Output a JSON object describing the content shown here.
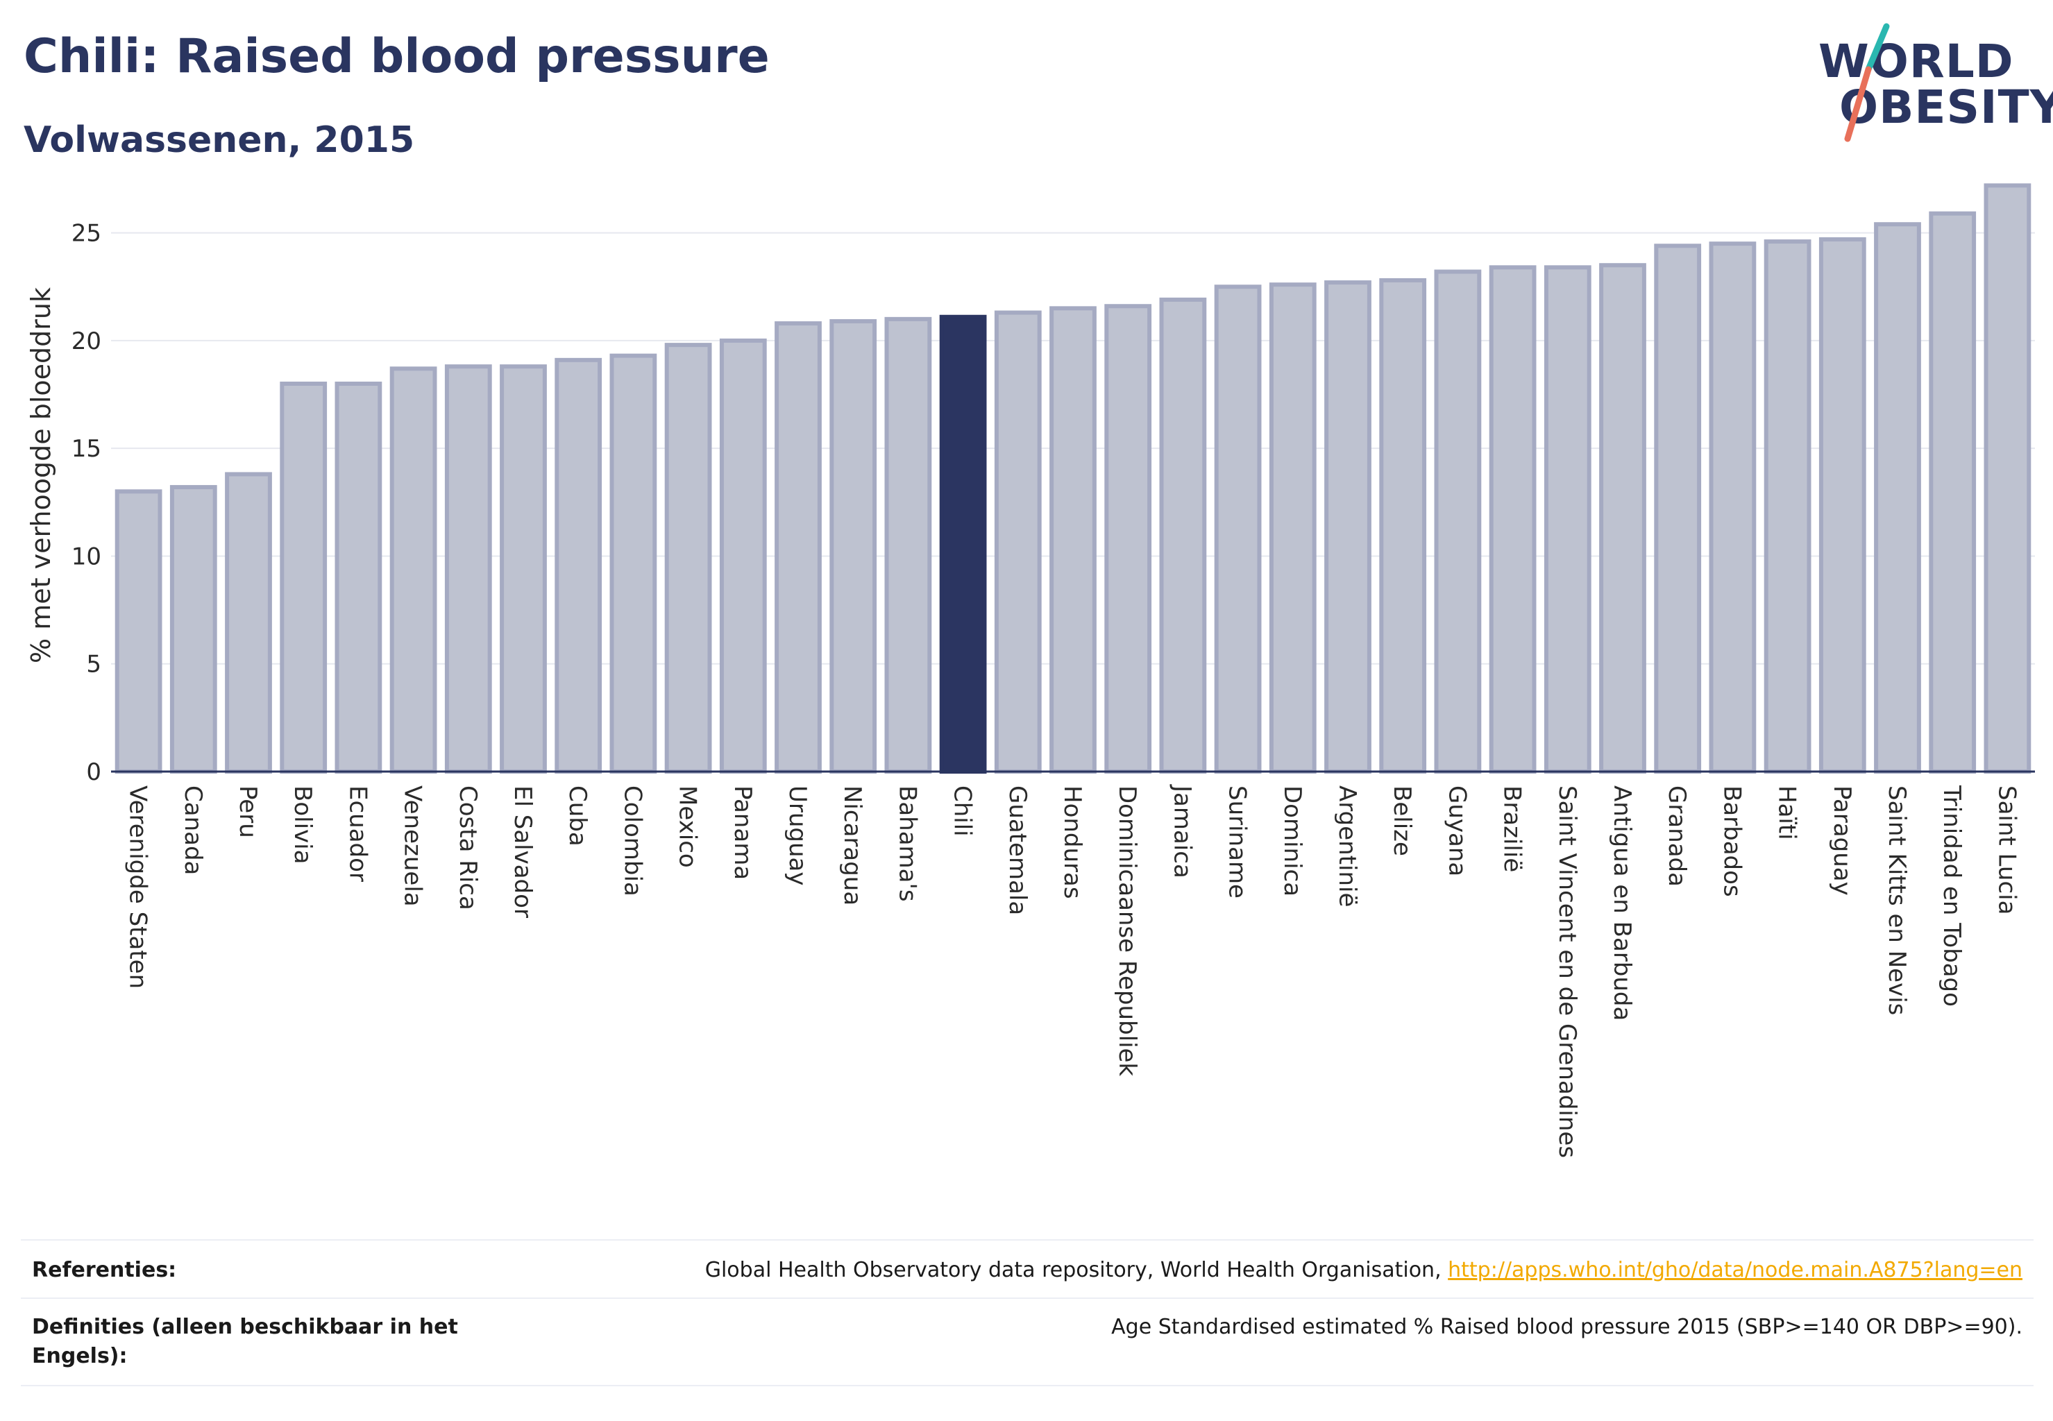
{
  "header": {
    "title": "Chili: Raised blood pressure",
    "subtitle": "Volwassenen, 2015"
  },
  "logo": {
    "line1": "WORLD",
    "line2": "OBESITY",
    "colors": {
      "text": "#2a3560",
      "slash_top": "#2ab7b0",
      "slash_bottom": "#e8705a"
    }
  },
  "colors": {
    "bar": "#bec2d0",
    "bar_border": "#a5aac2",
    "highlight": "#2b3561",
    "grid": "#e6e8ef",
    "axis": "#2a3560"
  },
  "chart_data": {
    "type": "bar",
    "ylabel": "% met verhoogde bloeddruk",
    "ylim": [
      0,
      27.5
    ],
    "yticks": [
      0,
      5,
      10,
      15,
      20,
      25
    ],
    "grid": true,
    "highlight": "Chili",
    "categories": [
      "Verenigde Staten",
      "Canada",
      "Peru",
      "Bolivia",
      "Ecuador",
      "Venezuela",
      "Costa Rica",
      "El Salvador",
      "Cuba",
      "Colombia",
      "Mexico",
      "Panama",
      "Uruguay",
      "Nicaragua",
      "Bahama's",
      "Chili",
      "Guatemala",
      "Honduras",
      "Dominicaanse Republiek",
      "Jamaica",
      "Suriname",
      "Dominica",
      "Argentinië",
      "Belize",
      "Guyana",
      "Brazilië",
      "Saint Vincent en de Grenadines",
      "Antigua en Barbuda",
      "Granada",
      "Barbados",
      "Haïti",
      "Paraguay",
      "Saint Kitts en Nevis",
      "Trinidad en Tobago",
      "Saint Lucia"
    ],
    "values": [
      13.0,
      13.2,
      13.8,
      18.0,
      18.0,
      18.7,
      18.8,
      18.8,
      19.1,
      19.3,
      19.8,
      20.0,
      20.8,
      20.9,
      21.0,
      21.1,
      21.3,
      21.5,
      21.6,
      21.9,
      22.5,
      22.6,
      22.7,
      22.8,
      23.2,
      23.4,
      23.4,
      23.5,
      24.4,
      24.5,
      24.6,
      24.7,
      25.4,
      25.9,
      27.2
    ]
  },
  "footer": {
    "references_label": "Referenties:",
    "references_text": "Global Health Observatory data repository, World Health Organisation, ",
    "references_link": "http://apps.who.int/gho/data/node.main.A875?lang=en",
    "definitions_label": "Definities (alleen beschikbaar in het Engels):",
    "definitions_text": "Age Standardised estimated % Raised blood pressure 2015 (SBP>=140 OR DBP>=90)."
  }
}
